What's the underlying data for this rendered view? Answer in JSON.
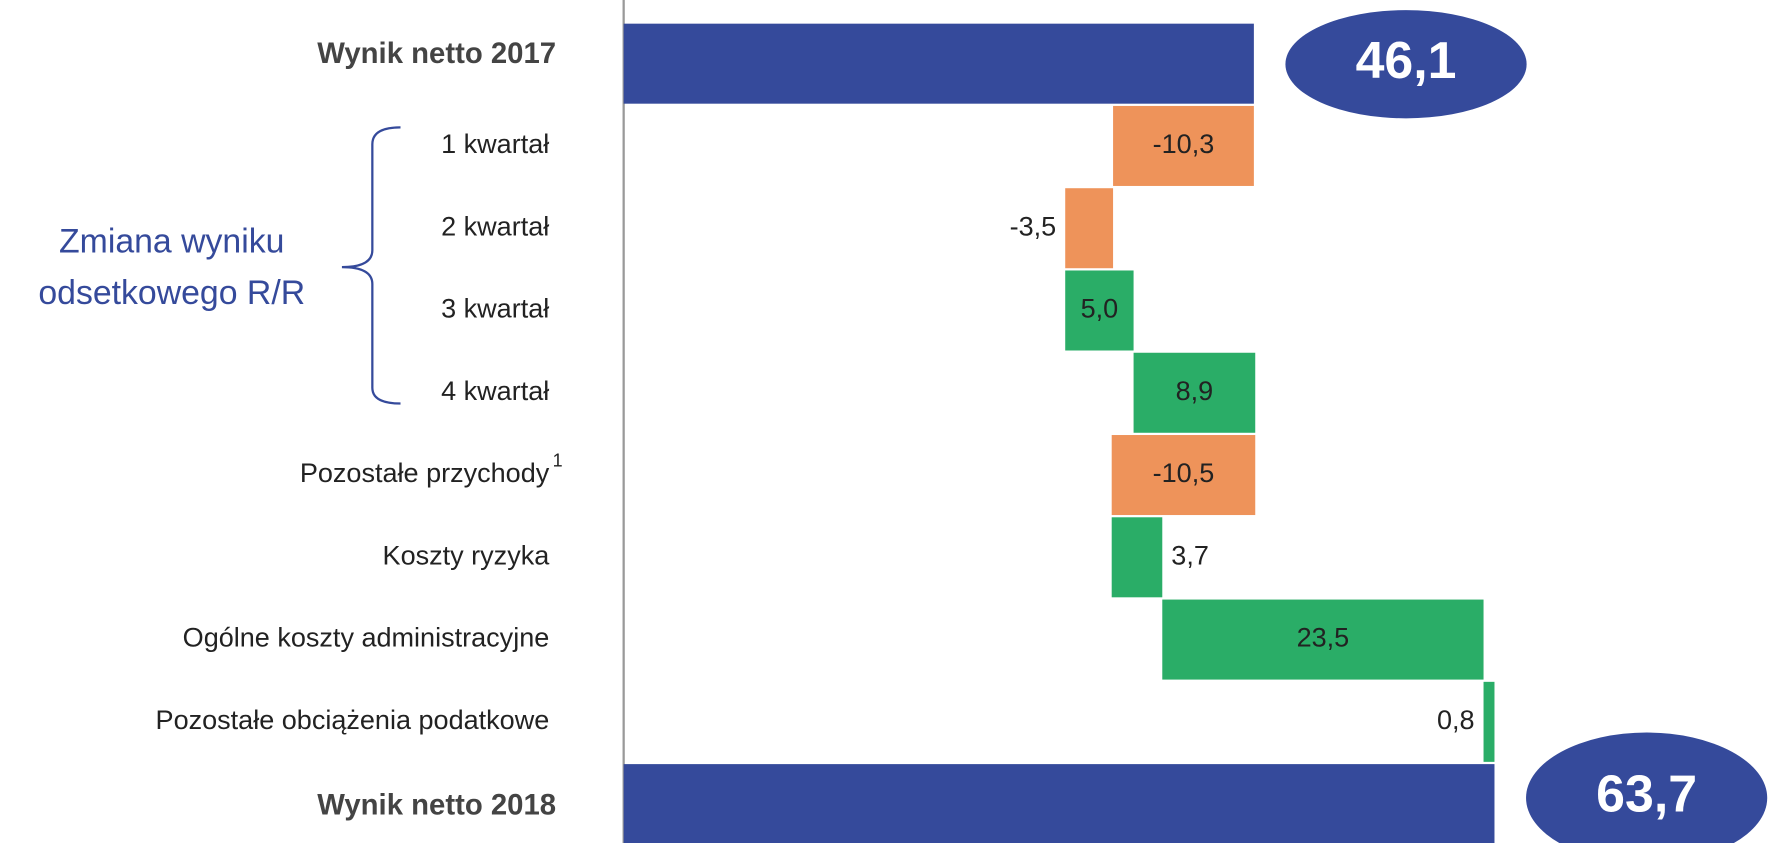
{
  "chart_data": {
    "type": "waterfall",
    "categories": [
      "Wynik netto 2017",
      "1 kwartał",
      "2 kwartał",
      "3 kwartał",
      "4 kwartał",
      "Pozostałe przychody",
      "Koszty ryzyka",
      "Ogólne koszty administracyjne",
      "Pozostałe obciążenia podatkowe",
      "Wynik netto 2018"
    ],
    "category_superscripts": [
      null,
      null,
      null,
      null,
      null,
      "1",
      null,
      null,
      null,
      null
    ],
    "measure": [
      "total",
      "relative",
      "relative",
      "relative",
      "relative",
      "relative",
      "relative",
      "relative",
      "relative",
      "total"
    ],
    "values": [
      46.1,
      -10.3,
      -3.5,
      5.0,
      8.9,
      -10.5,
      3.7,
      23.5,
      0.8,
      63.7
    ],
    "value_labels": [
      "46,1",
      "-10,3",
      "-3,5",
      "5,0",
      "8,9",
      "-10,5",
      "3,7",
      "23,5",
      "0,8",
      "63,7"
    ],
    "group_label": [
      "Zmiana wyniku",
      "odsetkowego R/R"
    ],
    "colors": {
      "total": "#354a9b",
      "increase": "#2aad67",
      "decrease": "#ee935a"
    },
    "xlim": [
      0,
      100
    ]
  }
}
